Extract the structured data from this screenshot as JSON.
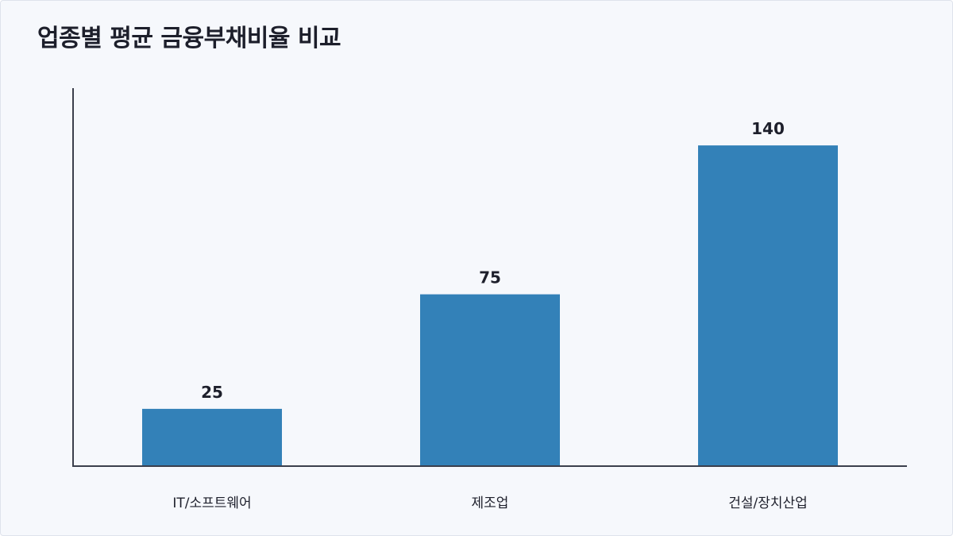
{
  "chart_data": {
    "type": "bar",
    "title": "업종별 평균 금융부채비율 비교",
    "categories": [
      "IT/소프트웨어",
      "제조업",
      "건설/장치산업"
    ],
    "values": [
      25,
      75,
      140
    ],
    "ylim": [
      0,
      165
    ],
    "xlabel": "",
    "ylabel": "",
    "grid": false,
    "legend": "none",
    "bar_color": "#3381b8",
    "axis_color": "#3b3f4c"
  }
}
